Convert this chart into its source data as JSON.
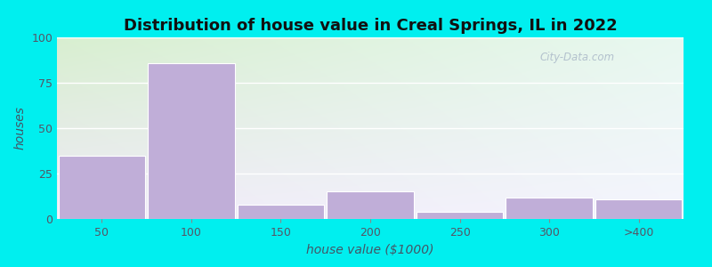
{
  "title": "Distribution of house value in Creal Springs, IL in 2022",
  "xlabel": "house value ($1000)",
  "ylabel": "houses",
  "categories": [
    "50",
    "100",
    "150",
    "200",
    "250",
    "300",
    ">400"
  ],
  "values": [
    35,
    86,
    8,
    15,
    4,
    12,
    11
  ],
  "bar_color": "#c0aed8",
  "bar_edge_color": "#d0c0e8",
  "ylim": [
    0,
    100
  ],
  "yticks": [
    0,
    25,
    50,
    75,
    100
  ],
  "bg_color_topleft": "#d8efd0",
  "bg_color_topright": "#e8f8f0",
  "bg_color_bottom": "#f0eaf8",
  "outer_bg": "#00efef",
  "title_fontsize": 13,
  "axis_label_fontsize": 10,
  "tick_fontsize": 9,
  "watermark_text": "City-Data.com",
  "figsize": [
    8.0,
    3.0
  ],
  "dpi": 100
}
